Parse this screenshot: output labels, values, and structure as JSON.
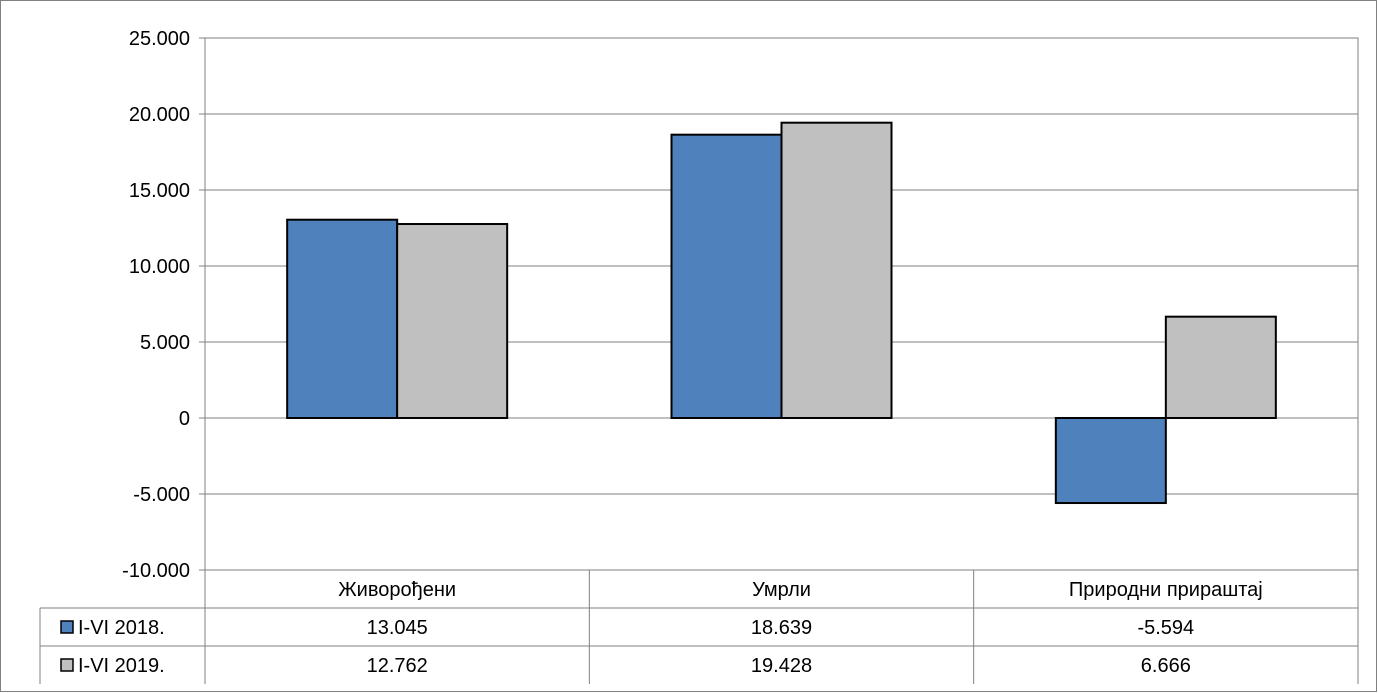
{
  "chart_data": {
    "type": "bar",
    "categories": [
      "Живорођени",
      "Умрли",
      "Природни прираштај"
    ],
    "series": [
      {
        "name": "I-VI 2018.",
        "values": [
          13045,
          18639,
          -5594
        ],
        "value_labels": [
          "13.045",
          "18.639",
          "-5.594"
        ],
        "color": "#4f81bd"
      },
      {
        "name": "I-VI 2019.",
        "values": [
          12762,
          19428,
          6666
        ],
        "value_labels": [
          "12.762",
          "19.428",
          "6.666"
        ],
        "color": "#c0c0c0"
      }
    ],
    "ylim": [
      -10000,
      25000
    ],
    "yticks": [
      25000,
      20000,
      15000,
      10000,
      5000,
      0,
      -5000,
      -10000
    ],
    "ytick_labels": [
      "25.000",
      "20.000",
      "15.000",
      "10.000",
      "5.000",
      "0",
      "-5.000",
      "-10.000"
    ],
    "grid": true,
    "legend_placement": "data-table-left"
  }
}
